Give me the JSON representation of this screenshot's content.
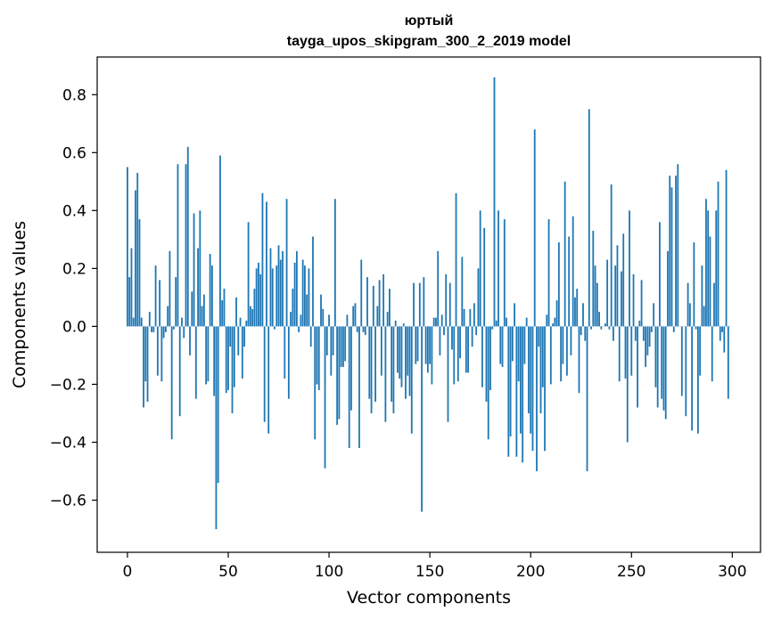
{
  "chart_data": {
    "type": "bar",
    "title": "юртый",
    "subtitle": "tayga_upos_skipgram_300_2_2019 model",
    "xlabel": "Vector components",
    "ylabel": "Components values",
    "xlim": [
      -15,
      314
    ],
    "ylim": [
      -0.78,
      0.93
    ],
    "x_ticks": [
      0,
      50,
      100,
      150,
      200,
      250,
      300
    ],
    "y_ticks": [
      -0.6,
      -0.4,
      -0.2,
      0.0,
      0.2,
      0.4,
      0.6,
      0.8
    ],
    "y_tick_labels": [
      "−0.6",
      "−0.4",
      "−0.2",
      "0.0",
      "0.2",
      "0.4",
      "0.6",
      "0.8"
    ],
    "grid": false,
    "legend": "none",
    "bar_color": "#1f77b4",
    "x": "0..299",
    "values": [
      0.55,
      0.17,
      0.27,
      0.03,
      0.47,
      0.53,
      0.37,
      0.03,
      -0.28,
      -0.19,
      -0.26,
      0.05,
      -0.02,
      -0.02,
      0.21,
      -0.17,
      0.16,
      -0.19,
      -0.04,
      -0.02,
      0.07,
      0.26,
      -0.39,
      -0.01,
      0.17,
      0.56,
      -0.31,
      0.03,
      -0.04,
      0.56,
      0.62,
      -0.1,
      0.12,
      0.39,
      -0.25,
      0.27,
      0.4,
      0.07,
      0.11,
      -0.2,
      -0.19,
      0.25,
      0.21,
      -0.24,
      -0.7,
      -0.54,
      0.59,
      0.09,
      0.13,
      -0.23,
      -0.22,
      -0.07,
      -0.3,
      -0.21,
      0.1,
      -0.1,
      0.03,
      -0.18,
      -0.07,
      0.02,
      0.36,
      0.07,
      0.06,
      0.13,
      0.2,
      0.22,
      0.18,
      0.46,
      -0.33,
      0.43,
      -0.37,
      0.27,
      0.2,
      -0.01,
      0.21,
      0.28,
      0.23,
      0.26,
      -0.18,
      0.44,
      -0.25,
      0.05,
      0.13,
      0.22,
      0.26,
      -0.02,
      0.04,
      0.23,
      0.21,
      0.11,
      0.2,
      -0.07,
      0.31,
      -0.39,
      -0.2,
      -0.22,
      0.11,
      0.06,
      -0.49,
      -0.1,
      0.04,
      -0.17,
      -0.1,
      0.44,
      -0.34,
      -0.32,
      -0.14,
      -0.14,
      -0.12,
      0.04,
      -0.42,
      -0.29,
      0.07,
      0.08,
      -0.02,
      -0.42,
      0.23,
      -0.02,
      -0.03,
      0.17,
      -0.25,
      -0.3,
      0.14,
      -0.26,
      0.07,
      0.16,
      -0.17,
      0.18,
      -0.33,
      0.05,
      0.13,
      -0.26,
      -0.3,
      0.02,
      -0.16,
      -0.18,
      -0.21,
      0.01,
      -0.25,
      -0.17,
      -0.24,
      -0.37,
      0.15,
      -0.13,
      -0.12,
      0.15,
      -0.64,
      0.17,
      -0.13,
      -0.16,
      -0.13,
      -0.2,
      0.03,
      0.03,
      0.26,
      -0.1,
      0.04,
      -0.03,
      0.18,
      -0.33,
      0.15,
      -0.08,
      -0.2,
      0.46,
      -0.19,
      -0.11,
      0.24,
      0.06,
      -0.16,
      -0.16,
      0.06,
      -0.07,
      0.08,
      -0.03,
      0.2,
      0.4,
      -0.21,
      0.34,
      -0.26,
      -0.39,
      -0.22,
      -0.01,
      0.86,
      0.02,
      0.4,
      -0.13,
      -0.14,
      0.37,
      0.03,
      -0.45,
      -0.38,
      -0.12,
      0.08,
      -0.45,
      -0.19,
      -0.37,
      -0.47,
      -0.13,
      0.03,
      -0.3,
      -0.37,
      -0.43,
      0.68,
      -0.5,
      -0.07,
      -0.3,
      -0.21,
      -0.43,
      0.04,
      0.37,
      -0.2,
      0.01,
      0.03,
      0.09,
      0.29,
      -0.19,
      -0.13,
      0.5,
      -0.17,
      0.31,
      -0.1,
      0.38,
      0.1,
      0.13,
      -0.23,
      -0.03,
      0.08,
      -0.05,
      -0.5,
      0.75,
      -0.01,
      0.33,
      0.21,
      0.15,
      0.05,
      -0.01,
      0.0,
      0.01,
      0.23,
      -0.01,
      0.49,
      -0.05,
      0.21,
      0.28,
      -0.19,
      0.19,
      0.32,
      -0.18,
      -0.4,
      0.4,
      -0.17,
      0.18,
      -0.05,
      -0.28,
      0.02,
      0.16,
      -0.05,
      -0.14,
      -0.1,
      -0.07,
      -0.02,
      0.08,
      -0.21,
      -0.28,
      0.36,
      -0.25,
      -0.29,
      -0.32,
      0.26,
      0.52,
      0.48,
      -0.02,
      0.52,
      0.56,
      0.0,
      -0.24,
      0.0,
      -0.31,
      0.15,
      0.08,
      -0.36,
      0.29,
      -0.01,
      -0.37,
      -0.17,
      0.21,
      0.07,
      0.44,
      0.4,
      0.31,
      -0.19,
      0.15,
      0.4,
      0.5,
      -0.05,
      -0.02,
      -0.09,
      0.54,
      -0.25,
      0.0
    ]
  }
}
